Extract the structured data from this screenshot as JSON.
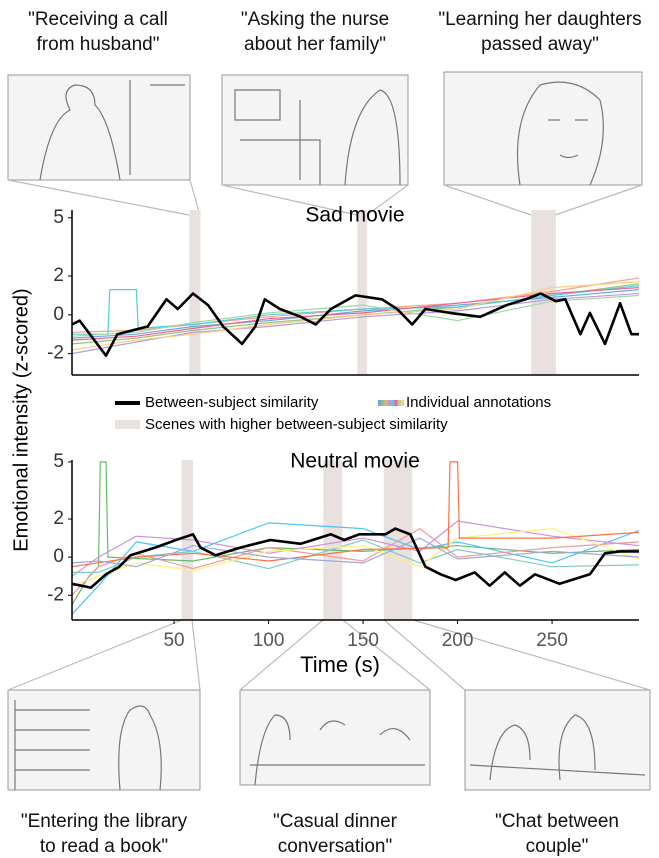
{
  "chart_data": [
    {
      "type": "line",
      "title": "Sad movie",
      "ylabel": "Emotional intensity (z-scored)",
      "xlim": [
        -4,
        296
      ],
      "ylim": [
        -3.1,
        5.4
      ],
      "yticks": [
        -2,
        0,
        2,
        5
      ],
      "highlights": {
        "name": "Scenes with higher between-subject similarity",
        "color": "#e9e0e0",
        "ranges": [
          [
            58,
            64
          ],
          [
            147,
            152
          ],
          [
            239,
            252
          ]
        ]
      },
      "scene_captions": [
        [
          "\"Receiving a call",
          "from husband\""
        ],
        [
          "\"Asking the nurse",
          "about her family\""
        ],
        [
          "\"Learning her daughters",
          "passed away\""
        ]
      ],
      "series": [
        {
          "name": "Between-subject similarity",
          "color": "#000000",
          "x": [
            -4,
            0,
            14,
            20,
            36,
            46,
            52,
            60,
            68,
            76,
            86,
            93,
            98,
            106,
            117,
            125,
            133,
            146,
            160,
            168,
            176,
            183,
            196,
            212,
            226,
            236,
            244,
            252,
            257,
            265,
            270,
            278,
            286,
            292,
            296
          ],
          "values": [
            -0.5,
            -0.3,
            -2.1,
            -1.0,
            -0.6,
            0.8,
            0.3,
            1.1,
            0.5,
            -0.6,
            -1.5,
            -0.6,
            0.8,
            0.3,
            -0.1,
            -0.5,
            0.3,
            1.0,
            0.8,
            0.3,
            -0.5,
            0.3,
            0.1,
            -0.1,
            0.5,
            0.8,
            1.1,
            0.7,
            0.8,
            -1.0,
            0.1,
            -1.5,
            0.6,
            -1.0,
            -1.0
          ]
        }
      ],
      "individual": {
        "name": "Individual annotations",
        "series": [
          {
            "color": "#6fa8dc",
            "x": [
              -4,
              30,
              60,
              100,
              150,
              200,
              250,
              296
            ],
            "values": [
              -1.2,
              -1.0,
              -0.6,
              -0.3,
              0.2,
              0.5,
              0.9,
              1.3
            ]
          },
          {
            "color": "#93c47d",
            "x": [
              -4,
              30,
              60,
              100,
              150,
              200,
              250,
              296
            ],
            "values": [
              -1.5,
              -1.2,
              -0.8,
              -0.4,
              0.0,
              0.4,
              1.0,
              1.6
            ]
          },
          {
            "color": "#f4a582",
            "x": [
              -4,
              30,
              60,
              100,
              150,
              200,
              250,
              296
            ],
            "values": [
              -0.9,
              -0.8,
              -0.5,
              -0.1,
              0.3,
              0.6,
              1.2,
              1.9
            ]
          },
          {
            "color": "#b39ddb",
            "x": [
              -4,
              30,
              60,
              100,
              150,
              200,
              250,
              296
            ],
            "values": [
              -2.0,
              -1.4,
              -0.9,
              -0.6,
              -0.1,
              0.2,
              0.8,
              1.1
            ]
          },
          {
            "color": "#4dd0e1",
            "x": [
              -4,
              15,
              16,
              30,
              31,
              60,
              100,
              150,
              200,
              250,
              296
            ],
            "values": [
              -1.0,
              -1.0,
              1.3,
              1.3,
              -0.7,
              -0.5,
              0.0,
              0.3,
              0.4,
              1.0,
              1.5
            ]
          },
          {
            "color": "#f06292",
            "x": [
              -4,
              30,
              60,
              100,
              150,
              200,
              250,
              296
            ],
            "values": [
              -1.3,
              -1.1,
              -0.7,
              -0.2,
              0.1,
              0.6,
              1.1,
              1.4
            ]
          },
          {
            "color": "#a5d6a7",
            "x": [
              -4,
              30,
              60,
              100,
              150,
              200,
              250,
              296
            ],
            "values": [
              -1.1,
              -0.9,
              -0.4,
              0.1,
              0.5,
              -0.3,
              0.7,
              1.0
            ]
          },
          {
            "color": "#ffcc80",
            "x": [
              -4,
              30,
              60,
              100,
              150,
              200,
              250,
              296
            ],
            "values": [
              -1.8,
              -1.3,
              -1.0,
              -0.5,
              0.0,
              0.3,
              1.4,
              1.7
            ]
          }
        ]
      }
    },
    {
      "type": "line",
      "title": "Neutral movie",
      "xlabel": "Time (s)",
      "xlim": [
        -4,
        296
      ],
      "ylim": [
        -3.3,
        5.1
      ],
      "yticks": [
        -2,
        0,
        2,
        5
      ],
      "xticks": [
        50,
        100,
        150,
        200,
        250
      ],
      "highlights": {
        "color": "#e9e0e0",
        "ranges": [
          [
            54,
            60
          ],
          [
            129,
            139
          ],
          [
            161,
            176
          ]
        ]
      },
      "scene_captions": [
        [
          "\"Entering the library",
          "to read a book\""
        ],
        [
          "\"Casual dinner",
          "conversation\""
        ],
        [
          "\"Chat between",
          "couple\""
        ]
      ],
      "series": [
        {
          "color": "#000000",
          "x": [
            -4,
            6,
            14,
            21,
            27,
            40,
            51,
            60,
            64,
            72,
            85,
            101,
            117,
            133,
            140,
            148,
            162,
            167,
            175,
            183,
            191,
            199,
            209,
            217,
            225,
            233,
            241,
            254,
            270,
            278,
            286,
            296
          ],
          "values": [
            -1.4,
            -1.6,
            -0.9,
            -0.5,
            0.1,
            0.5,
            0.9,
            1.2,
            0.5,
            0.1,
            0.5,
            0.9,
            0.7,
            1.2,
            0.9,
            1.2,
            1.2,
            1.5,
            1.2,
            -0.5,
            -0.9,
            -1.2,
            -0.8,
            -1.5,
            -0.8,
            -1.5,
            -0.9,
            -1.4,
            -0.9,
            0.2,
            0.3,
            0.3
          ]
        }
      ],
      "individual": {
        "series": [
          {
            "color": "#66bb6a",
            "x": [
              -4,
              5,
              10,
              11,
              14,
              15,
              60,
              100,
              150,
              200,
              250,
              296
            ],
            "values": [
              -2.5,
              -1.0,
              -0.5,
              5.0,
              5.0,
              0.0,
              -0.2,
              0.5,
              0.3,
              0.6,
              0.2,
              0.4
            ]
          },
          {
            "color": "#4fc3f7",
            "x": [
              -4,
              10,
              30,
              60,
              100,
              150,
              180,
              200,
              250,
              296
            ],
            "values": [
              -3.0,
              -1.5,
              0.8,
              0.3,
              1.8,
              1.5,
              0.4,
              0.8,
              -0.3,
              1.4
            ]
          },
          {
            "color": "#ef9a9a",
            "x": [
              -4,
              10,
              30,
              60,
              100,
              150,
              180,
              200,
              250,
              296
            ],
            "values": [
              -2.0,
              -0.5,
              0.2,
              -0.6,
              0.5,
              -0.2,
              1.5,
              0.0,
              0.5,
              0.8
            ]
          },
          {
            "color": "#ce93d8",
            "x": [
              -4,
              10,
              30,
              60,
              100,
              150,
              180,
              200,
              250,
              296
            ],
            "values": [
              -1.0,
              0.0,
              1.1,
              0.9,
              0.2,
              1.0,
              0.3,
              1.9,
              1.1,
              0.6
            ]
          },
          {
            "color": "#80cbc4",
            "x": [
              -4,
              10,
              30,
              60,
              100,
              150,
              180,
              200,
              250,
              296
            ],
            "values": [
              -0.8,
              -0.8,
              0.0,
              0.3,
              -0.6,
              0.9,
              -0.3,
              0.4,
              -0.5,
              -0.4
            ]
          },
          {
            "color": "#fff176",
            "x": [
              -4,
              10,
              30,
              60,
              100,
              150,
              180,
              200,
              250,
              296
            ],
            "values": [
              -1.5,
              -1.0,
              -0.3,
              -0.7,
              0.3,
              0.6,
              -0.5,
              1.0,
              1.5,
              -0.1
            ]
          },
          {
            "color": "#ff7043",
            "x": [
              -4,
              30,
              60,
              100,
              150,
              195,
              196,
              200,
              201,
              250,
              296
            ],
            "values": [
              -0.5,
              0.0,
              0.2,
              -0.2,
              0.4,
              0.5,
              5.0,
              5.0,
              1.0,
              1.0,
              1.3
            ]
          },
          {
            "color": "#9fa8da",
            "x": [
              -4,
              10,
              30,
              60,
              100,
              150,
              180,
              200,
              250,
              296
            ],
            "values": [
              -0.3,
              -0.2,
              -0.5,
              0.6,
              0.0,
              -0.3,
              1.0,
              -0.1,
              0.3,
              0.0
            ]
          }
        ]
      }
    }
  ]
}
